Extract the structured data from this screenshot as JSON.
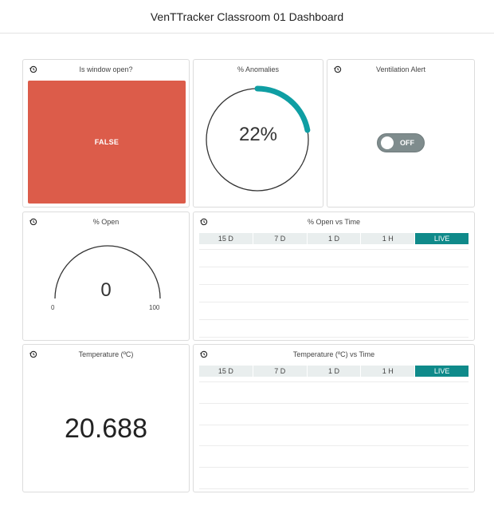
{
  "header": {
    "title": "VenTTracker Classroom 01 Dashboard"
  },
  "window_open": {
    "title": "Is window open?",
    "value": "FALSE"
  },
  "anomalies": {
    "title": "% Anomalies",
    "value_text": "22%",
    "percent": 22,
    "accent": "#0f9ea3"
  },
  "ventilation": {
    "title": "Ventilation Alert",
    "state": "OFF"
  },
  "open_gauge": {
    "title": "% Open",
    "value": "0",
    "min": "0",
    "max": "100"
  },
  "open_chart": {
    "title": "% Open vs Time",
    "ranges": [
      "15 D",
      "7 D",
      "1 D",
      "1 H",
      "LIVE"
    ],
    "active_range": "LIVE"
  },
  "temperature": {
    "title": "Temperature (ºC)",
    "value": "20.688"
  },
  "temp_chart": {
    "title": "Temperature (ºC) vs Time",
    "ranges": [
      "15 D",
      "7 D",
      "1 D",
      "1 H",
      "LIVE"
    ],
    "active_range": "LIVE"
  },
  "colors": {
    "false_red": "#dc5c4a",
    "teal": "#0f8a8a",
    "toggle_grey": "#7f8c8d"
  },
  "icons": {
    "history": "history-icon"
  }
}
